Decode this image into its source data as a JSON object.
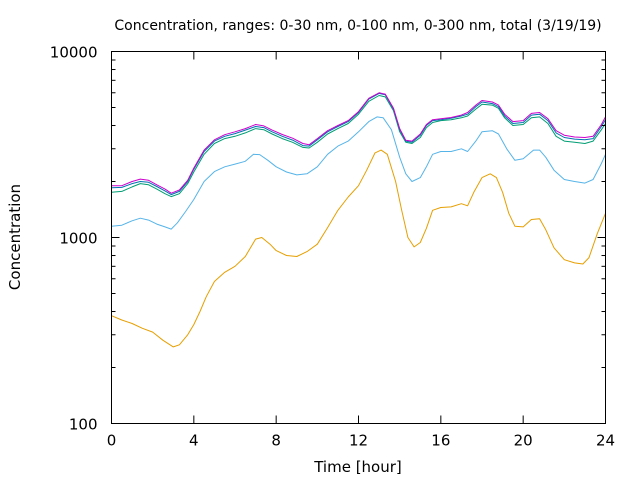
{
  "chart_data": {
    "type": "line",
    "title": "Concentration, ranges: 0-30 nm, 0-100 nm, 0-300 nm, total (3/19/19)",
    "xlabel": "Time [hour]",
    "ylabel": "Concentration",
    "xlim": [
      0,
      24
    ],
    "ylim": [
      100,
      10000
    ],
    "yscale": "log",
    "grid": false,
    "legend": "none",
    "x_ticks": [
      "0",
      "4",
      "8",
      "12",
      "16",
      "20",
      "24"
    ],
    "y_ticks": [
      "100",
      "1000",
      "10000"
    ],
    "series": [
      {
        "color": "#e69f00",
        "points": [
          [
            0,
            380
          ],
          [
            0.5,
            360
          ],
          [
            1,
            345
          ],
          [
            1.5,
            325
          ],
          [
            2,
            310
          ],
          [
            2.5,
            280
          ],
          [
            3,
            258
          ],
          [
            3.3,
            265
          ],
          [
            3.7,
            300
          ],
          [
            4,
            340
          ],
          [
            4.3,
            400
          ],
          [
            4.6,
            480
          ],
          [
            5,
            580
          ],
          [
            5.5,
            650
          ],
          [
            6,
            700
          ],
          [
            6.5,
            790
          ],
          [
            7,
            980
          ],
          [
            7.3,
            1000
          ],
          [
            7.7,
            920
          ],
          [
            8,
            850
          ],
          [
            8.5,
            800
          ],
          [
            9,
            790
          ],
          [
            9.5,
            840
          ],
          [
            10,
            920
          ],
          [
            10.5,
            1130
          ],
          [
            11,
            1400
          ],
          [
            11.5,
            1650
          ],
          [
            12,
            1900
          ],
          [
            12.4,
            2300
          ],
          [
            12.8,
            2850
          ],
          [
            13.1,
            2950
          ],
          [
            13.4,
            2800
          ],
          [
            13.8,
            2000
          ],
          [
            14.1,
            1400
          ],
          [
            14.4,
            1000
          ],
          [
            14.7,
            890
          ],
          [
            15,
            940
          ],
          [
            15.3,
            1120
          ],
          [
            15.6,
            1400
          ],
          [
            16,
            1450
          ],
          [
            16.5,
            1460
          ],
          [
            17,
            1520
          ],
          [
            17.3,
            1480
          ],
          [
            17.6,
            1750
          ],
          [
            18,
            2100
          ],
          [
            18.4,
            2200
          ],
          [
            18.7,
            2100
          ],
          [
            19,
            1750
          ],
          [
            19.3,
            1350
          ],
          [
            19.6,
            1150
          ],
          [
            20,
            1140
          ],
          [
            20.4,
            1250
          ],
          [
            20.8,
            1260
          ],
          [
            21.1,
            1100
          ],
          [
            21.5,
            880
          ],
          [
            22,
            760
          ],
          [
            22.5,
            730
          ],
          [
            22.9,
            720
          ],
          [
            23.2,
            780
          ],
          [
            23.6,
            1050
          ],
          [
            24,
            1350
          ]
        ]
      },
      {
        "color": "#56b4e9",
        "points": [
          [
            0,
            1150
          ],
          [
            0.5,
            1165
          ],
          [
            1,
            1230
          ],
          [
            1.4,
            1270
          ],
          [
            1.8,
            1240
          ],
          [
            2.2,
            1180
          ],
          [
            2.6,
            1140
          ],
          [
            2.9,
            1110
          ],
          [
            3.2,
            1200
          ],
          [
            3.6,
            1380
          ],
          [
            4,
            1600
          ],
          [
            4.5,
            2000
          ],
          [
            5,
            2260
          ],
          [
            5.5,
            2400
          ],
          [
            6,
            2480
          ],
          [
            6.5,
            2570
          ],
          [
            6.9,
            2800
          ],
          [
            7.2,
            2790
          ],
          [
            7.6,
            2600
          ],
          [
            8,
            2400
          ],
          [
            8.5,
            2250
          ],
          [
            9,
            2170
          ],
          [
            9.5,
            2200
          ],
          [
            10,
            2400
          ],
          [
            10.5,
            2800
          ],
          [
            11,
            3100
          ],
          [
            11.5,
            3300
          ],
          [
            12,
            3700
          ],
          [
            12.5,
            4200
          ],
          [
            12.9,
            4450
          ],
          [
            13.2,
            4400
          ],
          [
            13.6,
            3800
          ],
          [
            14,
            2700
          ],
          [
            14.3,
            2200
          ],
          [
            14.6,
            2000
          ],
          [
            15,
            2100
          ],
          [
            15.3,
            2400
          ],
          [
            15.6,
            2800
          ],
          [
            16,
            2900
          ],
          [
            16.5,
            2900
          ],
          [
            17,
            3000
          ],
          [
            17.3,
            2900
          ],
          [
            17.7,
            3300
          ],
          [
            18,
            3700
          ],
          [
            18.5,
            3750
          ],
          [
            18.8,
            3600
          ],
          [
            19.2,
            3000
          ],
          [
            19.6,
            2600
          ],
          [
            20,
            2650
          ],
          [
            20.5,
            2950
          ],
          [
            20.8,
            2950
          ],
          [
            21.1,
            2700
          ],
          [
            21.5,
            2300
          ],
          [
            22,
            2050
          ],
          [
            22.5,
            2000
          ],
          [
            23,
            1960
          ],
          [
            23.4,
            2050
          ],
          [
            23.8,
            2500
          ],
          [
            24,
            2800
          ]
        ]
      },
      {
        "color": "#009e73",
        "points": [
          [
            0,
            1750
          ],
          [
            0.5,
            1770
          ],
          [
            1,
            1870
          ],
          [
            1.4,
            1950
          ],
          [
            1.8,
            1920
          ],
          [
            2.2,
            1820
          ],
          [
            2.6,
            1720
          ],
          [
            2.9,
            1660
          ],
          [
            3.3,
            1720
          ],
          [
            3.7,
            1950
          ],
          [
            4,
            2250
          ],
          [
            4.5,
            2800
          ],
          [
            5,
            3200
          ],
          [
            5.5,
            3400
          ],
          [
            6,
            3500
          ],
          [
            6.5,
            3650
          ],
          [
            7,
            3850
          ],
          [
            7.4,
            3800
          ],
          [
            7.8,
            3600
          ],
          [
            8.3,
            3400
          ],
          [
            8.8,
            3250
          ],
          [
            9.3,
            3050
          ],
          [
            9.6,
            3030
          ],
          [
            10,
            3250
          ],
          [
            10.5,
            3600
          ],
          [
            11,
            3850
          ],
          [
            11.5,
            4100
          ],
          [
            12,
            4600
          ],
          [
            12.5,
            5400
          ],
          [
            13,
            5800
          ],
          [
            13.3,
            5700
          ],
          [
            13.7,
            4800
          ],
          [
            14,
            3700
          ],
          [
            14.3,
            3250
          ],
          [
            14.6,
            3200
          ],
          [
            15,
            3450
          ],
          [
            15.3,
            3900
          ],
          [
            15.6,
            4150
          ],
          [
            16,
            4250
          ],
          [
            16.5,
            4300
          ],
          [
            17,
            4400
          ],
          [
            17.3,
            4500
          ],
          [
            17.7,
            4900
          ],
          [
            18,
            5200
          ],
          [
            18.5,
            5150
          ],
          [
            18.8,
            4950
          ],
          [
            19.1,
            4400
          ],
          [
            19.5,
            4000
          ],
          [
            20,
            4050
          ],
          [
            20.4,
            4400
          ],
          [
            20.8,
            4450
          ],
          [
            21.2,
            4100
          ],
          [
            21.6,
            3500
          ],
          [
            22,
            3300
          ],
          [
            22.5,
            3250
          ],
          [
            23,
            3200
          ],
          [
            23.4,
            3300
          ],
          [
            23.8,
            3800
          ],
          [
            24,
            4100
          ]
        ]
      },
      {
        "color": "#0072b2",
        "points": [
          [
            0,
            1850
          ],
          [
            0.5,
            1860
          ],
          [
            1,
            1950
          ],
          [
            1.4,
            2000
          ],
          [
            1.8,
            1980
          ],
          [
            2.2,
            1880
          ],
          [
            2.6,
            1780
          ],
          [
            2.9,
            1700
          ],
          [
            3.3,
            1770
          ],
          [
            3.7,
            2000
          ],
          [
            4,
            2330
          ],
          [
            4.5,
            2900
          ],
          [
            5,
            3300
          ],
          [
            5.5,
            3500
          ],
          [
            6,
            3620
          ],
          [
            6.5,
            3780
          ],
          [
            7,
            3950
          ],
          [
            7.4,
            3900
          ],
          [
            7.8,
            3700
          ],
          [
            8.3,
            3500
          ],
          [
            8.8,
            3340
          ],
          [
            9.3,
            3120
          ],
          [
            9.6,
            3100
          ],
          [
            10,
            3350
          ],
          [
            10.5,
            3700
          ],
          [
            11,
            3950
          ],
          [
            11.5,
            4200
          ],
          [
            12,
            4700
          ],
          [
            12.5,
            5550
          ],
          [
            13,
            5950
          ],
          [
            13.3,
            5850
          ],
          [
            13.7,
            4900
          ],
          [
            14,
            3800
          ],
          [
            14.3,
            3300
          ],
          [
            14.6,
            3250
          ],
          [
            15,
            3550
          ],
          [
            15.3,
            4000
          ],
          [
            15.6,
            4250
          ],
          [
            16,
            4300
          ],
          [
            16.5,
            4380
          ],
          [
            17,
            4500
          ],
          [
            17.3,
            4600
          ],
          [
            17.7,
            5050
          ],
          [
            18,
            5350
          ],
          [
            18.5,
            5250
          ],
          [
            18.8,
            5050
          ],
          [
            19.1,
            4500
          ],
          [
            19.5,
            4100
          ],
          [
            20,
            4150
          ],
          [
            20.4,
            4550
          ],
          [
            20.8,
            4600
          ],
          [
            21.2,
            4250
          ],
          [
            21.6,
            3650
          ],
          [
            22,
            3450
          ],
          [
            22.5,
            3380
          ],
          [
            23,
            3350
          ],
          [
            23.4,
            3400
          ],
          [
            23.8,
            3950
          ],
          [
            24,
            4300
          ]
        ]
      },
      {
        "color": "#cc00cc",
        "points": [
          [
            0,
            1900
          ],
          [
            0.5,
            1900
          ],
          [
            1,
            2000
          ],
          [
            1.4,
            2060
          ],
          [
            1.8,
            2030
          ],
          [
            2.2,
            1920
          ],
          [
            2.6,
            1820
          ],
          [
            2.9,
            1730
          ],
          [
            3.3,
            1800
          ],
          [
            3.7,
            2030
          ],
          [
            4,
            2360
          ],
          [
            4.5,
            2950
          ],
          [
            5,
            3350
          ],
          [
            5.5,
            3570
          ],
          [
            6,
            3700
          ],
          [
            6.5,
            3850
          ],
          [
            7,
            4050
          ],
          [
            7.4,
            3980
          ],
          [
            7.8,
            3780
          ],
          [
            8.3,
            3580
          ],
          [
            8.8,
            3420
          ],
          [
            9.3,
            3200
          ],
          [
            9.6,
            3150
          ],
          [
            10,
            3400
          ],
          [
            10.5,
            3750
          ],
          [
            11,
            4000
          ],
          [
            11.5,
            4250
          ],
          [
            12,
            4750
          ],
          [
            12.5,
            5600
          ],
          [
            13,
            6000
          ],
          [
            13.3,
            5900
          ],
          [
            13.7,
            4950
          ],
          [
            14,
            3850
          ],
          [
            14.3,
            3330
          ],
          [
            14.6,
            3300
          ],
          [
            15,
            3600
          ],
          [
            15.3,
            4050
          ],
          [
            15.6,
            4300
          ],
          [
            16,
            4350
          ],
          [
            16.5,
            4420
          ],
          [
            17,
            4550
          ],
          [
            17.3,
            4700
          ],
          [
            17.7,
            5150
          ],
          [
            18,
            5450
          ],
          [
            18.5,
            5350
          ],
          [
            18.8,
            5150
          ],
          [
            19.1,
            4600
          ],
          [
            19.5,
            4200
          ],
          [
            20,
            4250
          ],
          [
            20.4,
            4650
          ],
          [
            20.8,
            4700
          ],
          [
            21.2,
            4350
          ],
          [
            21.6,
            3750
          ],
          [
            22,
            3550
          ],
          [
            22.5,
            3470
          ],
          [
            23,
            3450
          ],
          [
            23.4,
            3500
          ],
          [
            23.8,
            4050
          ],
          [
            24,
            4450
          ]
        ]
      }
    ]
  }
}
